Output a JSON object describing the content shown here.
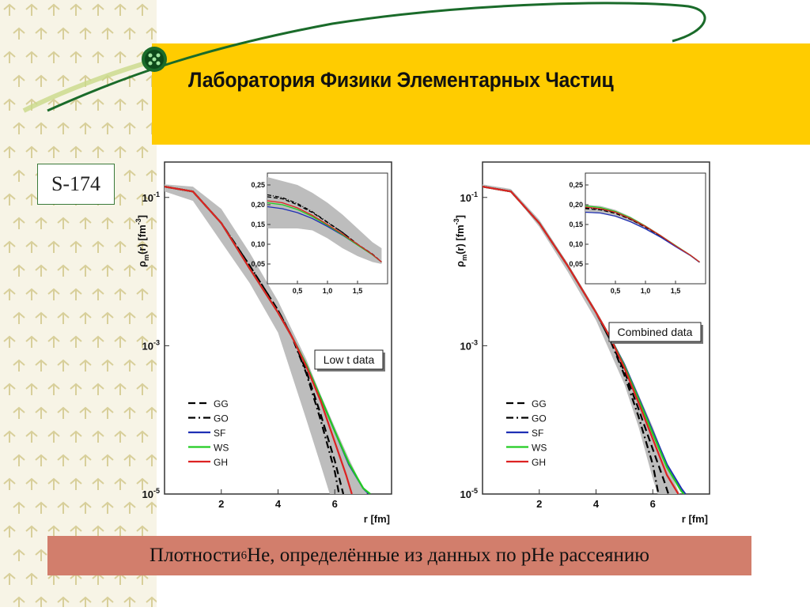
{
  "slide": {
    "title": "Лаборатория Физики Элементарных Частиц",
    "code": "S-174",
    "caption_prefix": "Плотности ",
    "caption_sup": "6",
    "caption_rest": "He, определённые из данных по pHe рассеянию"
  },
  "colors": {
    "banner": "#ffcc00",
    "caption_bg": "#d27e6c",
    "band": "#bdbdbd",
    "GG": "#000000",
    "GO": "#000000",
    "SF": "#1f2fb5",
    "WS": "#22cc22",
    "GH": "#dd2222"
  },
  "chart_data": [
    {
      "type": "line",
      "ylog": true,
      "xlim": [
        0,
        8
      ],
      "ylim": [
        1e-05,
        0.3
      ],
      "xticks": [
        "2",
        "4",
        "6"
      ],
      "yticks": [
        "10-1",
        "10-3",
        "10-5"
      ],
      "xlabel": "r [fm]",
      "ylabel": "ρm(r) [fm-3]",
      "annotation": "Low t data",
      "legend": [
        "GG",
        "GO",
        "SF",
        "WS",
        "GH"
      ],
      "legend_position": "bottom-left",
      "band": {
        "x": [
          0,
          1,
          2,
          3,
          4,
          5,
          5.5,
          6,
          6.5,
          7,
          7.5
        ],
        "upper": [
          0.15,
          0.14,
          0.07,
          0.018,
          0.004,
          0.00065,
          0.00022,
          8e-05,
          3e-05,
          1.2e-05,
          6e-06
        ],
        "lower": [
          0.12,
          0.09,
          0.025,
          0.007,
          0.0015,
          0.0001,
          2.5e-05,
          6e-06,
          3e-06,
          1e-06,
          1e-06
        ]
      },
      "series": [
        {
          "name": "GG",
          "style": "dash",
          "x": [
            0,
            1,
            2,
            3,
            4,
            4.5,
            5,
            5.5,
            6,
            6.3
          ],
          "y": [
            0.14,
            0.12,
            0.045,
            0.012,
            0.003,
            0.0013,
            0.00045,
            0.00012,
            2.8e-05,
            1e-05
          ]
        },
        {
          "name": "GO",
          "style": "dashdot",
          "x": [
            0,
            1,
            2,
            3,
            4,
            4.5,
            5,
            5.5,
            6,
            6.15
          ],
          "y": [
            0.14,
            0.12,
            0.045,
            0.012,
            0.003,
            0.0013,
            0.00042,
            0.0001,
            2e-05,
            1e-05
          ]
        },
        {
          "name": "SF",
          "style": "solid",
          "x": [
            0,
            1,
            2,
            3,
            4,
            4.5,
            5,
            5.5,
            6,
            6.5,
            7,
            7.2
          ],
          "y": [
            0.14,
            0.12,
            0.045,
            0.011,
            0.0028,
            0.0013,
            0.00055,
            0.0002,
            7e-05,
            2.5e-05,
            1.2e-05,
            1e-05
          ]
        },
        {
          "name": "WS",
          "style": "solid",
          "x": [
            0,
            1,
            2,
            3,
            4,
            4.5,
            5,
            5.5,
            6,
            6.5,
            7,
            7.25
          ],
          "y": [
            0.14,
            0.12,
            0.045,
            0.011,
            0.0028,
            0.0013,
            0.00055,
            0.0002,
            7e-05,
            2.6e-05,
            1.2e-05,
            1e-05
          ]
        },
        {
          "name": "GH",
          "style": "solid",
          "x": [
            0,
            1,
            2,
            3,
            4,
            4.5,
            5,
            5.5,
            6,
            6.4,
            6.6
          ],
          "y": [
            0.14,
            0.12,
            0.045,
            0.011,
            0.0028,
            0.0013,
            0.00052,
            0.00018,
            5e-05,
            1.8e-05,
            1e-05
          ]
        }
      ],
      "inset": {
        "xlim": [
          0,
          2
        ],
        "ylim": [
          0,
          0.28
        ],
        "xticks": [
          "0,5",
          "1,0",
          "1,5"
        ],
        "yticks": [
          "0,05",
          "0,10",
          "0,15",
          "0,20",
          "0,25"
        ],
        "band": {
          "x": [
            0,
            0.25,
            0.5,
            0.75,
            1.0,
            1.25,
            1.5,
            1.75,
            1.9
          ],
          "upper": [
            0.27,
            0.26,
            0.25,
            0.23,
            0.205,
            0.175,
            0.14,
            0.105,
            0.09
          ],
          "lower": [
            0.14,
            0.14,
            0.14,
            0.135,
            0.115,
            0.09,
            0.07,
            0.055,
            0.05
          ]
        },
        "series": [
          {
            "name": "GG",
            "style": "dash",
            "x": [
              0,
              0.25,
              0.5,
              0.75,
              1.0,
              1.25,
              1.5,
              1.75,
              1.9
            ],
            "y": [
              0.22,
              0.215,
              0.2,
              0.18,
              0.155,
              0.13,
              0.1,
              0.075,
              0.055
            ]
          },
          {
            "name": "GO",
            "style": "dashdot",
            "x": [
              0,
              0.25,
              0.5,
              0.75,
              1.0,
              1.25,
              1.5,
              1.75,
              1.9
            ],
            "y": [
              0.225,
              0.218,
              0.203,
              0.182,
              0.156,
              0.13,
              0.1,
              0.074,
              0.055
            ]
          },
          {
            "name": "SF",
            "style": "solid",
            "x": [
              0,
              0.25,
              0.5,
              0.75,
              1.0,
              1.25,
              1.5,
              1.75,
              1.9
            ],
            "y": [
              0.195,
              0.19,
              0.18,
              0.165,
              0.145,
              0.123,
              0.098,
              0.073,
              0.055
            ]
          },
          {
            "name": "WS",
            "style": "solid",
            "x": [
              0,
              0.25,
              0.5,
              0.75,
              1.0,
              1.25,
              1.5,
              1.75,
              1.9
            ],
            "y": [
              0.205,
              0.2,
              0.188,
              0.17,
              0.148,
              0.124,
              0.098,
              0.073,
              0.055
            ]
          },
          {
            "name": "GH",
            "style": "solid",
            "x": [
              0,
              0.25,
              0.5,
              0.75,
              1.0,
              1.25,
              1.5,
              1.75,
              1.9
            ],
            "y": [
              0.21,
              0.205,
              0.192,
              0.173,
              0.15,
              0.126,
              0.1,
              0.074,
              0.055
            ]
          }
        ]
      }
    },
    {
      "type": "line",
      "ylog": true,
      "xlim": [
        0,
        8
      ],
      "ylim": [
        1e-05,
        0.3
      ],
      "xticks": [
        "2",
        "4",
        "6"
      ],
      "yticks": [
        "10-1",
        "10-3",
        "10-5"
      ],
      "xlabel": "r [fm]",
      "ylabel": "ρm(r) [fm-3]",
      "annotation": "Combined data",
      "legend": [
        "GG",
        "GO",
        "SF",
        "WS",
        "GH"
      ],
      "legend_position": "bottom-left",
      "band": {
        "x": [
          0,
          1,
          2,
          3,
          4,
          5,
          5.5,
          6,
          6.5,
          7
        ],
        "upper": [
          0.15,
          0.13,
          0.05,
          0.013,
          0.003,
          0.0006,
          0.00022,
          8e-05,
          2.5e-05,
          9e-06
        ],
        "lower": [
          0.14,
          0.12,
          0.04,
          0.01,
          0.0022,
          0.0003,
          8e-05,
          1.6e-05,
          4e-06,
          2e-06
        ]
      },
      "series": [
        {
          "name": "GG",
          "style": "dash",
          "x": [
            0,
            1,
            2,
            3,
            4,
            4.5,
            5,
            5.5,
            6,
            6.4,
            6.55
          ],
          "y": [
            0.14,
            0.12,
            0.045,
            0.012,
            0.0028,
            0.0012,
            0.00045,
            0.00014,
            4e-05,
            1.5e-05,
            1e-05
          ]
        },
        {
          "name": "GO",
          "style": "dashdot",
          "x": [
            0,
            1,
            2,
            3,
            4,
            4.5,
            5,
            5.5,
            6,
            6.2
          ],
          "y": [
            0.14,
            0.12,
            0.045,
            0.012,
            0.0028,
            0.0012,
            0.0004,
            0.00011,
            2.5e-05,
            1e-05
          ]
        },
        {
          "name": "SF",
          "style": "solid",
          "x": [
            0,
            1,
            2,
            3,
            4,
            4.5,
            5,
            5.5,
            6,
            6.5,
            7.0,
            7.15
          ],
          "y": [
            0.14,
            0.12,
            0.045,
            0.012,
            0.0028,
            0.0013,
            0.00055,
            0.0002,
            7e-05,
            2.5e-05,
            1.2e-05,
            1e-05
          ]
        },
        {
          "name": "WS",
          "style": "solid",
          "x": [
            0,
            1,
            2,
            3,
            4,
            4.5,
            5,
            5.5,
            6,
            6.5,
            7.0,
            7.1
          ],
          "y": [
            0.14,
            0.12,
            0.045,
            0.012,
            0.0028,
            0.0013,
            0.00053,
            0.00019,
            6.5e-05,
            2.3e-05,
            1.1e-05,
            1e-05
          ]
        },
        {
          "name": "GH",
          "style": "solid",
          "x": [
            0,
            1,
            2,
            3,
            4,
            4.5,
            5,
            5.5,
            6,
            6.5,
            6.9
          ],
          "y": [
            0.14,
            0.12,
            0.045,
            0.012,
            0.0028,
            0.0013,
            0.0005,
            0.00017,
            5.5e-05,
            1.8e-05,
            1e-05
          ]
        }
      ],
      "inset": {
        "xlim": [
          0,
          2
        ],
        "ylim": [
          0,
          0.28
        ],
        "xticks": [
          "0,5",
          "1,0",
          "1,5"
        ],
        "yticks": [
          "0,05",
          "0,10",
          "0,15",
          "0,20",
          "0,25"
        ],
        "band": {
          "x": [
            0,
            0.25,
            0.5,
            0.75,
            1.0,
            1.25,
            1.5,
            1.75,
            1.9
          ],
          "upper": [
            0.2,
            0.197,
            0.187,
            0.17,
            0.148,
            0.124,
            0.098,
            0.073,
            0.056
          ],
          "lower": [
            0.18,
            0.178,
            0.17,
            0.156,
            0.138,
            0.117,
            0.093,
            0.07,
            0.053
          ]
        },
        "series": [
          {
            "name": "GG",
            "style": "dash",
            "x": [
              0,
              0.25,
              0.5,
              0.75,
              1.0,
              1.25,
              1.5,
              1.75,
              1.9
            ],
            "y": [
              0.19,
              0.187,
              0.178,
              0.163,
              0.143,
              0.121,
              0.096,
              0.072,
              0.055
            ]
          },
          {
            "name": "GO",
            "style": "dashdot",
            "x": [
              0,
              0.25,
              0.5,
              0.75,
              1.0,
              1.25,
              1.5,
              1.75,
              1.9
            ],
            "y": [
              0.192,
              0.189,
              0.18,
              0.164,
              0.144,
              0.121,
              0.096,
              0.072,
              0.055
            ]
          },
          {
            "name": "SF",
            "style": "solid",
            "x": [
              0,
              0.25,
              0.5,
              0.75,
              1.0,
              1.25,
              1.5,
              1.75,
              1.9
            ],
            "y": [
              0.181,
              0.179,
              0.171,
              0.157,
              0.139,
              0.118,
              0.094,
              0.071,
              0.054
            ]
          },
          {
            "name": "WS",
            "style": "solid",
            "x": [
              0,
              0.25,
              0.5,
              0.75,
              1.0,
              1.25,
              1.5,
              1.75,
              1.9
            ],
            "y": [
              0.197,
              0.193,
              0.183,
              0.167,
              0.146,
              0.122,
              0.097,
              0.072,
              0.055
            ]
          },
          {
            "name": "GH",
            "style": "solid",
            "x": [
              0,
              0.25,
              0.5,
              0.75,
              1.0,
              1.25,
              1.5,
              1.75,
              1.9
            ],
            "y": [
              0.194,
              0.19,
              0.181,
              0.165,
              0.145,
              0.122,
              0.096,
              0.072,
              0.055
            ]
          }
        ]
      }
    }
  ]
}
